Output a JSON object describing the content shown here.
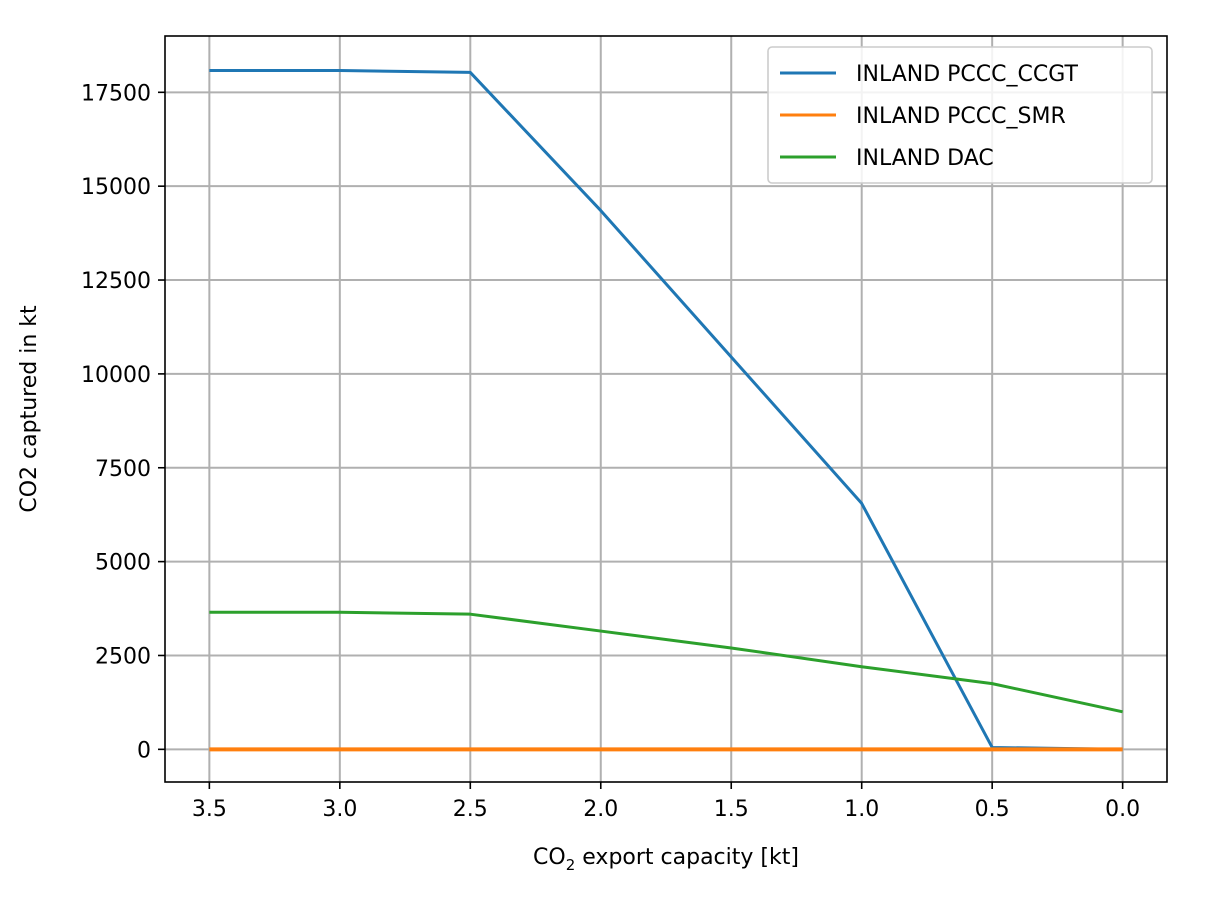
{
  "chart_data": {
    "type": "line",
    "xlabel_prefix": "CO",
    "xlabel_sub": "2",
    "xlabel_suffix": " export capacity [kt]",
    "ylabel": "CO2 captured in kt",
    "x_reversed": true,
    "xlim": [
      3.67,
      -0.17
    ],
    "ylim": [
      -870,
      19000
    ],
    "x_ticks": [
      3.5,
      3.0,
      2.5,
      2.0,
      1.5,
      1.0,
      0.5,
      0.0
    ],
    "x_tick_labels": [
      "3.5",
      "3.0",
      "2.5",
      "2.0",
      "1.5",
      "1.0",
      "0.5",
      "0.0"
    ],
    "y_ticks": [
      0,
      2500,
      5000,
      7500,
      10000,
      12500,
      15000,
      17500
    ],
    "y_tick_labels": [
      "0",
      "2500",
      "5000",
      "7500",
      "10000",
      "12500",
      "15000",
      "17500"
    ],
    "grid": true,
    "legend_position": "top-right",
    "x": [
      3.5,
      3.0,
      2.5,
      2.0,
      1.5,
      1.0,
      0.5,
      0.0
    ],
    "series": [
      {
        "name": "INLAND PCCC_CCGT",
        "color": "#1f77b4",
        "values": [
          18080,
          18080,
          18030,
          14350,
          10450,
          6550,
          50,
          0
        ]
      },
      {
        "name": "INLAND PCCC_SMR",
        "color": "#ff7f0e",
        "values": [
          0,
          0,
          0,
          0,
          0,
          0,
          0,
          0
        ]
      },
      {
        "name": "INLAND DAC",
        "color": "#2ca02c",
        "values": [
          3650,
          3650,
          3600,
          3150,
          2700,
          2200,
          1750,
          1000
        ]
      }
    ]
  }
}
